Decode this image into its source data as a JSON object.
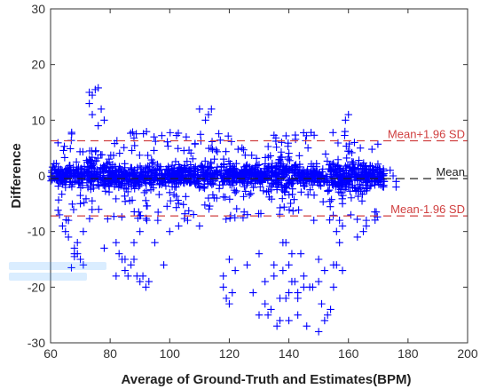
{
  "chart_data": {
    "type": "scatter",
    "title": "",
    "xlabel": "Average of Ground-Truth and Estimates(BPM)",
    "ylabel": "Difference",
    "xlim": [
      60,
      200
    ],
    "ylim": [
      -30,
      30
    ],
    "xticks": [
      60,
      80,
      100,
      120,
      140,
      160,
      180,
      200
    ],
    "yticks": [
      -30,
      -20,
      -10,
      0,
      10,
      20,
      30
    ],
    "grid": false,
    "marker": "plus",
    "point_color": "#0000ff",
    "reference_lines": [
      {
        "label": "Mean+1.96 SD",
        "y": 6.3,
        "color": "#d04040",
        "style": "dashed"
      },
      {
        "label": "Mean",
        "y": -0.5,
        "color": "#222222",
        "style": "dashed"
      },
      {
        "label": "Mean-1.96 SD",
        "y": -7.2,
        "color": "#d04040",
        "style": "dashed"
      }
    ],
    "series": [
      {
        "x": [
          73,
          74,
          75,
          76,
          77,
          74,
          73,
          76,
          78,
          71,
          69,
          69,
          70,
          71,
          65,
          66,
          68,
          68,
          68,
          67,
          66,
          63,
          64,
          70,
          78,
          82,
          85,
          82,
          83,
          87,
          88,
          89,
          90,
          91,
          92,
          93,
          88,
          90,
          85,
          86,
          84,
          96,
          100,
          103,
          98,
          95,
          106,
          110,
          112,
          113,
          114,
          110,
          118,
          119,
          120,
          121,
          122,
          120,
          118,
          126,
          130,
          132,
          128,
          135,
          138,
          140,
          140,
          141,
          144,
          139,
          130,
          134,
          137,
          133,
          132,
          136,
          137,
          139,
          141,
          143,
          145,
          147,
          135,
          138,
          143,
          140,
          143,
          146,
          150,
          152,
          153,
          154,
          151,
          150,
          152,
          155,
          156,
          158,
          157,
          159,
          158,
          160,
          162,
          164,
          163,
          165,
          166,
          157,
          156,
          145,
          142,
          148,
          150,
          155,
          166,
          168,
          170,
          172,
          174,
          175,
          176,
          103,
          107,
          115,
          125,
          130,
          145,
          150,
          155,
          160,
          168,
          172,
          100,
          113,
          122,
          136,
          158,
          176
        ],
        "y": [
          15,
          14.5,
          15.5,
          15.8,
          12,
          11,
          13,
          9,
          10,
          -10,
          -14,
          -12,
          -15,
          -16,
          -10,
          -11,
          -13,
          -14,
          -14.5,
          -16.5,
          -8,
          -7,
          -9,
          -5,
          -13,
          -18,
          -15,
          -12,
          -14,
          -16,
          -15,
          -18,
          -19,
          -18,
          -20,
          -19,
          -12,
          -10,
          -17,
          -18,
          -15,
          -8,
          -10,
          -9,
          -16,
          -12,
          -8,
          -9,
          10,
          11,
          12,
          12,
          -20,
          -22,
          -23,
          -21,
          -17,
          -15,
          -18,
          -16,
          -14,
          -19,
          -21,
          -18,
          -12,
          -16,
          -21,
          -14,
          -14,
          -12,
          -25,
          -24,
          -26,
          -25,
          -23,
          -27,
          -22,
          -22,
          -19,
          -21,
          -20,
          -20,
          -16,
          -17,
          -22,
          -26,
          -25,
          -27,
          -28,
          -26,
          -25,
          -24,
          -23,
          -15,
          -17,
          -16,
          -16,
          -17,
          -8,
          10,
          -9,
          11,
          6,
          5,
          -11,
          -10,
          -8,
          -12,
          -10,
          -18,
          -19,
          -20,
          -19,
          -20,
          -9,
          1,
          0,
          -1,
          1,
          0,
          -2,
          2,
          2,
          3,
          1,
          2,
          1,
          -1,
          2,
          -2,
          -1,
          -1,
          -3,
          -4,
          -3,
          -2,
          -5,
          -1
        ]
      }
    ]
  }
}
